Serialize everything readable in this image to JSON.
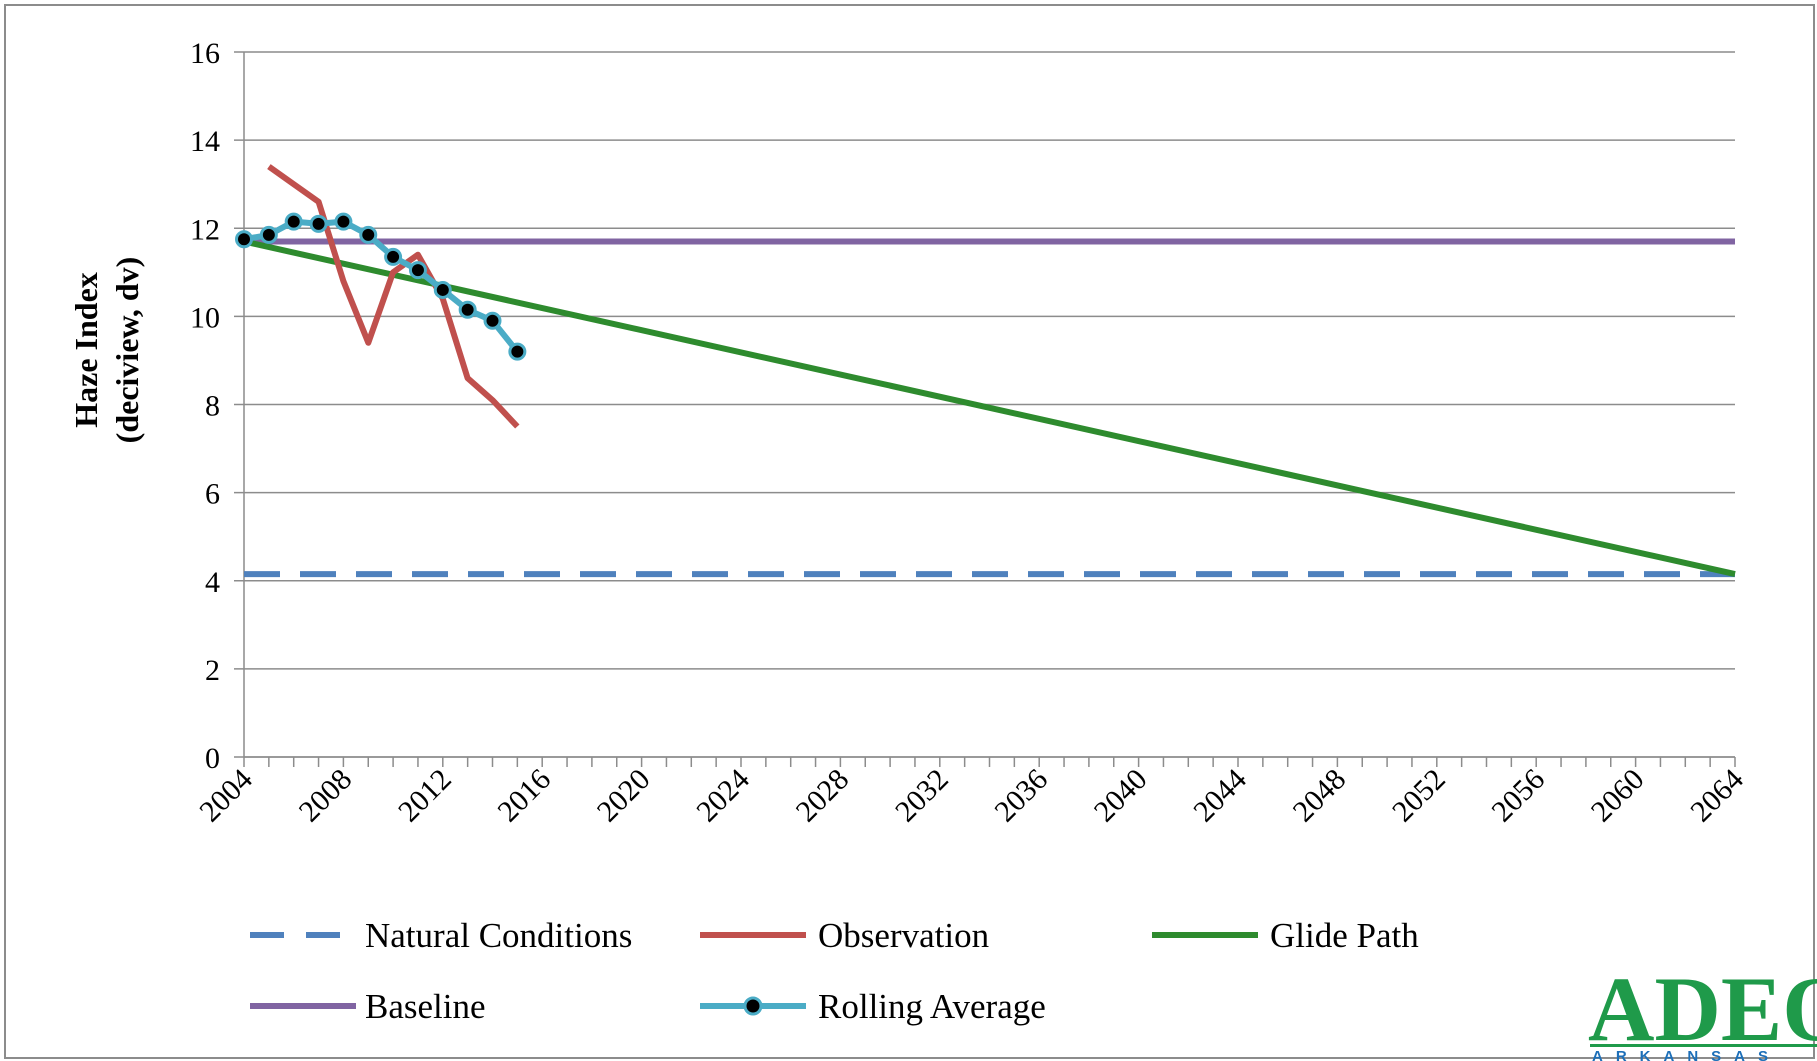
{
  "chart_data": {
    "type": "line",
    "ylabel_line1": "Haze Index",
    "ylabel_line2": "(deciview, dv)",
    "ylim": [
      0,
      16
    ],
    "y_ticks": [
      0,
      2,
      4,
      6,
      8,
      10,
      12,
      14,
      16
    ],
    "xlim": [
      2004,
      2064
    ],
    "x_tick_labels": [
      "2004",
      "2008",
      "2012",
      "2016",
      "2020",
      "2024",
      "2028",
      "2032",
      "2036",
      "2040",
      "2044",
      "2048",
      "2052",
      "2056",
      "2060",
      "2064"
    ],
    "grid": "horizontal",
    "series": [
      {
        "name": "Natural Conditions",
        "color": "#4f81bd",
        "style": "dashed",
        "x": [
          2004,
          2064
        ],
        "y": [
          4.15,
          4.15
        ]
      },
      {
        "name": "Observation",
        "color": "#c0504d",
        "style": "solid",
        "x": [
          2005,
          2006,
          2007,
          2008,
          2009,
          2010,
          2011,
          2012,
          2013,
          2014,
          2015
        ],
        "y": [
          13.4,
          13.0,
          12.6,
          10.8,
          9.4,
          11.0,
          11.4,
          10.4,
          8.6,
          8.1,
          7.5
        ]
      },
      {
        "name": "Glide Path",
        "color": "#2e8b2e",
        "style": "solid",
        "x": [
          2004,
          2064
        ],
        "y": [
          11.7,
          4.15
        ]
      },
      {
        "name": "Baseline",
        "color": "#8064a2",
        "style": "solid",
        "x": [
          2004,
          2064
        ],
        "y": [
          11.7,
          11.7
        ]
      },
      {
        "name": "Rolling Average",
        "color": "#4bacc6",
        "style": "solid-markers",
        "x": [
          2004,
          2005,
          2006,
          2007,
          2008,
          2009,
          2010,
          2011,
          2012,
          2013,
          2014,
          2015
        ],
        "y": [
          11.75,
          11.85,
          12.15,
          12.1,
          12.15,
          11.85,
          11.35,
          11.05,
          10.6,
          10.15,
          9.9,
          9.2
        ]
      }
    ],
    "legend_position": "bottom"
  },
  "logo": {
    "main": "ADEQ",
    "sub": "ARKANSAS"
  },
  "colors": {
    "grid": "#8c8c8c",
    "logo_green": "#1f9a4a",
    "logo_blue": "#1d6fb8"
  }
}
